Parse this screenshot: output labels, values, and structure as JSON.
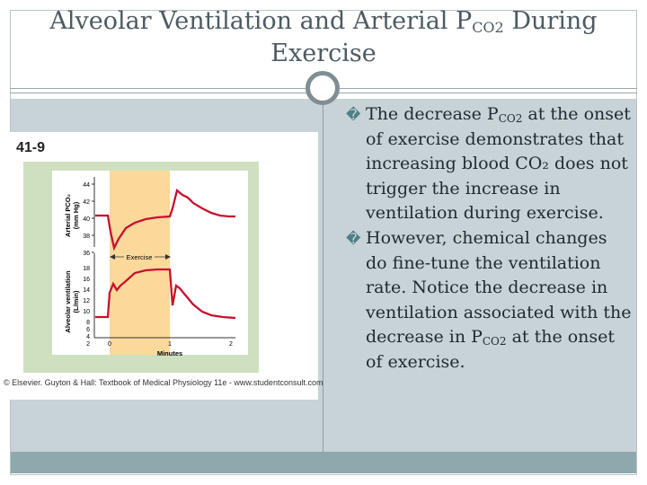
{
  "title": {
    "line1_prefix": "Alveolar Ventilation and Arterial P",
    "line1_sub": "CO2",
    "line1_suffix": " During",
    "line2": "Exercise"
  },
  "figure": {
    "label": "41-9",
    "credit": "© Elsevier. Guyton & Hall: Textbook of Medical Physiology 11e - www.studentconsult.com",
    "top_ylabel_line1": "Arterial PCO₂",
    "top_ylabel_line2": "(mm Hg)",
    "bottom_ylabel_line1": "Alveolar ventilation",
    "bottom_ylabel_line2": "(L/min)",
    "exercise_label": "Exercise",
    "xlabel": "Minutes",
    "top_ticks": [
      "44",
      "42",
      "40",
      "38",
      "36"
    ],
    "bottom_ticks": [
      "18",
      "16",
      "14",
      "12",
      "10",
      "8",
      "6",
      "4",
      "2"
    ],
    "x_ticks": [
      "0",
      "1",
      "2"
    ],
    "colors": {
      "background": "#cfe0c1",
      "exercise_band": "#fbd99a",
      "curve": "#c8102e"
    }
  },
  "bullets": [
    {
      "pre": "The decrease P",
      "sub": "CO2",
      "post": " at the onset of exercise demonstrates that increasing blood CO₂ does not trigger the increase in ventilation during exercise."
    },
    {
      "pre": "However, chemical changes do fine-tune the ventilation rate.  Notice the decrease in ventilation associated with the decrease in P",
      "sub": "CO2",
      "post": " at the onset of exercise."
    }
  ],
  "bullet_glyph": "�"
}
